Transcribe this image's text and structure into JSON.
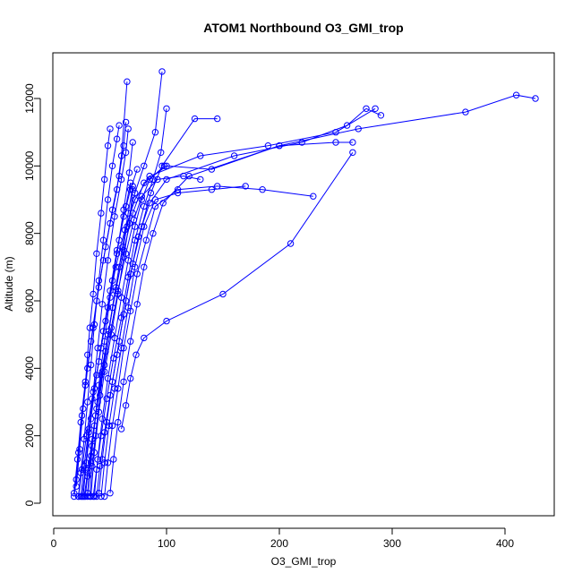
{
  "chart_data": {
    "type": "line",
    "title": "ATOM1 Northbound O3_GMI_trop",
    "xlabel": "O3_GMI_trop",
    "ylabel": "Altitude (m)",
    "xlim": [
      0,
      450
    ],
    "ylim": [
      0,
      12900
    ],
    "x_ticks": [
      0,
      100,
      200,
      300,
      400
    ],
    "y_ticks": [
      0,
      2000,
      4000,
      6000,
      8000,
      10000,
      12000
    ],
    "marker": "open-circle",
    "grid": false,
    "legend": "none",
    "series_color": "#0000ff",
    "series": [
      {
        "points": [
          [
            18,
            200
          ],
          [
            20,
            700
          ],
          [
            22,
            1500
          ],
          [
            25,
            2600
          ],
          [
            28,
            3500
          ],
          [
            30,
            4400
          ],
          [
            32,
            5200
          ],
          [
            35,
            6200
          ],
          [
            38,
            7400
          ],
          [
            42,
            8600
          ],
          [
            45,
            9600
          ],
          [
            48,
            10600
          ],
          [
            50,
            11100
          ]
        ]
      },
      {
        "points": [
          [
            22,
            200
          ],
          [
            24,
            900
          ],
          [
            27,
            1900
          ],
          [
            30,
            3000
          ],
          [
            33,
            4100
          ],
          [
            36,
            5300
          ],
          [
            40,
            6600
          ],
          [
            44,
            7800
          ],
          [
            48,
            9000
          ],
          [
            52,
            10000
          ],
          [
            56,
            10800
          ],
          [
            58,
            11200
          ]
        ]
      },
      {
        "points": [
          [
            25,
            200
          ],
          [
            28,
            1000
          ],
          [
            31,
            2100
          ],
          [
            35,
            3300
          ],
          [
            39,
            4600
          ],
          [
            43,
            5900
          ],
          [
            48,
            7200
          ],
          [
            54,
            8500
          ],
          [
            60,
            9600
          ],
          [
            64,
            10400
          ],
          [
            66,
            11100
          ]
        ]
      },
      {
        "points": [
          [
            30,
            200
          ],
          [
            33,
            1200
          ],
          [
            36,
            2300
          ],
          [
            40,
            3500
          ],
          [
            45,
            4800
          ],
          [
            50,
            6100
          ],
          [
            56,
            7400
          ],
          [
            62,
            8700
          ],
          [
            67,
            9800
          ],
          [
            70,
            10700
          ]
        ]
      },
      {
        "points": [
          [
            32,
            200
          ],
          [
            34,
            1100
          ],
          [
            37,
            2000
          ],
          [
            41,
            3200
          ],
          [
            46,
            4500
          ],
          [
            52,
            5800
          ],
          [
            58,
            7000
          ],
          [
            65,
            8200
          ],
          [
            72,
            9200
          ],
          [
            80,
            10000
          ],
          [
            90,
            11000
          ],
          [
            96,
            12800
          ]
        ]
      },
      {
        "points": [
          [
            18,
            300
          ],
          [
            21,
            1300
          ],
          [
            24,
            2400
          ],
          [
            28,
            3600
          ],
          [
            33,
            4800
          ],
          [
            38,
            6000
          ],
          [
            44,
            7200
          ],
          [
            50,
            8300
          ],
          [
            56,
            9300
          ],
          [
            60,
            10300
          ],
          [
            65,
            12500
          ]
        ]
      },
      {
        "points": [
          [
            28,
            200
          ],
          [
            30,
            800
          ],
          [
            34,
            1700
          ],
          [
            38,
            2800
          ],
          [
            43,
            3900
          ],
          [
            49,
            5100
          ],
          [
            55,
            6400
          ],
          [
            61,
            7600
          ],
          [
            66,
            8600
          ],
          [
            70,
            9400
          ]
        ]
      },
      {
        "points": [
          [
            35,
            200
          ],
          [
            38,
            1000
          ],
          [
            42,
            2000
          ],
          [
            47,
            3100
          ],
          [
            53,
            4300
          ],
          [
            60,
            5500
          ],
          [
            66,
            6700
          ],
          [
            72,
            7800
          ],
          [
            80,
            8800
          ],
          [
            88,
            9600
          ],
          [
            95,
            10400
          ],
          [
            100,
            11700
          ]
        ]
      },
      {
        "points": [
          [
            20,
            500
          ],
          [
            23,
            1600
          ],
          [
            26,
            2800
          ],
          [
            30,
            4000
          ],
          [
            35,
            5200
          ],
          [
            40,
            6400
          ],
          [
            46,
            7600
          ],
          [
            52,
            8700
          ],
          [
            58,
            9700
          ],
          [
            62,
            10600
          ],
          [
            64,
            11300
          ]
        ]
      },
      {
        "points": [
          [
            40,
            300
          ],
          [
            43,
            1300
          ],
          [
            47,
            2400
          ],
          [
            52,
            3600
          ],
          [
            58,
            4800
          ],
          [
            64,
            6000
          ],
          [
            70,
            7100
          ],
          [
            78,
            8200
          ],
          [
            86,
            9200
          ],
          [
            96,
            10000
          ],
          [
            125,
            11400
          ],
          [
            145,
            11400
          ]
        ]
      },
      {
        "points": [
          [
            33,
            200
          ],
          [
            36,
            1500
          ],
          [
            40,
            2700
          ],
          [
            45,
            3900
          ],
          [
            51,
            5000
          ],
          [
            57,
            6200
          ],
          [
            62,
            7300
          ],
          [
            67,
            8300
          ],
          [
            70,
            9300
          ]
        ]
      },
      {
        "points": [
          [
            26,
            200
          ],
          [
            29,
            1200
          ],
          [
            33,
            2500
          ],
          [
            38,
            3800
          ],
          [
            44,
            5100
          ],
          [
            50,
            6300
          ],
          [
            56,
            7500
          ],
          [
            62,
            8500
          ],
          [
            68,
            9300
          ],
          [
            74,
            9900
          ]
        ]
      },
      {
        "points": [
          [
            45,
            200
          ],
          [
            48,
            1200
          ],
          [
            52,
            2300
          ],
          [
            57,
            3400
          ],
          [
            62,
            4600
          ],
          [
            68,
            5700
          ],
          [
            74,
            6800
          ],
          [
            82,
            7800
          ],
          [
            90,
            8800
          ],
          [
            110,
            9300
          ],
          [
            145,
            9400
          ],
          [
            185,
            9300
          ],
          [
            230,
            9100
          ]
        ]
      },
      {
        "points": [
          [
            30,
            300
          ],
          [
            33,
            1400
          ],
          [
            37,
            2600
          ],
          [
            42,
            3800
          ],
          [
            48,
            5000
          ],
          [
            55,
            6300
          ],
          [
            62,
            7500
          ],
          [
            70,
            8600
          ],
          [
            80,
            9500
          ],
          [
            100,
            10000
          ],
          [
            140,
            9900
          ],
          [
            200,
            10600
          ],
          [
            250,
            10700
          ],
          [
            265,
            10700
          ]
        ]
      },
      {
        "points": [
          [
            38,
            200
          ],
          [
            41,
            1100
          ],
          [
            45,
            2100
          ],
          [
            50,
            3200
          ],
          [
            56,
            4400
          ],
          [
            62,
            5600
          ],
          [
            68,
            6800
          ],
          [
            75,
            7900
          ],
          [
            85,
            8900
          ],
          [
            100,
            9600
          ],
          [
            160,
            10300
          ],
          [
            220,
            10700
          ],
          [
            260,
            11200
          ],
          [
            277,
            11700
          ],
          [
            290,
            11500
          ]
        ]
      },
      {
        "points": [
          [
            24,
            200
          ],
          [
            27,
            1100
          ],
          [
            31,
            2200
          ],
          [
            36,
            3400
          ],
          [
            42,
            4600
          ],
          [
            48,
            5800
          ],
          [
            55,
            7000
          ],
          [
            63,
            8100
          ],
          [
            72,
            9000
          ],
          [
            85,
            9700
          ],
          [
            130,
            10300
          ],
          [
            190,
            10600
          ],
          [
            250,
            11000
          ],
          [
            285,
            11700
          ]
        ]
      },
      {
        "points": [
          [
            50,
            300
          ],
          [
            53,
            1300
          ],
          [
            57,
            2400
          ],
          [
            62,
            3600
          ],
          [
            68,
            4800
          ],
          [
            74,
            5900
          ],
          [
            80,
            7000
          ],
          [
            88,
            8000
          ],
          [
            97,
            8900
          ],
          [
            120,
            9700
          ],
          [
            200,
            10600
          ],
          [
            270,
            11100
          ],
          [
            365,
            11600
          ],
          [
            410,
            12100
          ],
          [
            427,
            12000
          ]
        ]
      },
      {
        "points": [
          [
            60,
            2200
          ],
          [
            64,
            2900
          ],
          [
            68,
            3700
          ],
          [
            73,
            4400
          ],
          [
            80,
            4900
          ],
          [
            100,
            5400
          ],
          [
            150,
            6200
          ],
          [
            210,
            7700
          ],
          [
            265,
            10400
          ]
        ]
      },
      {
        "points": [
          [
            42,
            200
          ],
          [
            45,
            1200
          ],
          [
            49,
            2300
          ],
          [
            54,
            3400
          ],
          [
            60,
            4600
          ],
          [
            66,
            5800
          ],
          [
            72,
            7000
          ],
          [
            80,
            8200
          ],
          [
            90,
            9000
          ],
          [
            110,
            9200
          ],
          [
            140,
            9300
          ],
          [
            170,
            9400
          ]
        ]
      },
      {
        "points": [
          [
            36,
            200
          ],
          [
            39,
            1300
          ],
          [
            43,
            2500
          ],
          [
            48,
            3700
          ],
          [
            54,
            4900
          ],
          [
            60,
            6100
          ],
          [
            66,
            7200
          ],
          [
            72,
            8200
          ],
          [
            78,
            9000
          ],
          [
            85,
            9600
          ],
          [
            98,
            10000
          ]
        ]
      },
      {
        "points": [
          [
            27,
            200
          ],
          [
            30,
            900
          ],
          [
            34,
            1900
          ],
          [
            39,
            3000
          ],
          [
            45,
            4100
          ],
          [
            51,
            5200
          ],
          [
            57,
            6300
          ],
          [
            64,
            7400
          ],
          [
            71,
            8400
          ],
          [
            78,
            9100
          ],
          [
            92,
            9600
          ],
          [
            115,
            9700
          ],
          [
            130,
            9600
          ]
        ]
      },
      {
        "points": [
          [
            22,
            200
          ],
          [
            25,
            1000
          ],
          [
            29,
            2000
          ],
          [
            34,
            3100
          ],
          [
            40,
            4200
          ],
          [
            46,
            5400
          ],
          [
            52,
            6600
          ],
          [
            58,
            7800
          ],
          [
            64,
            8800
          ],
          [
            68,
            9500
          ]
        ]
      }
    ]
  }
}
